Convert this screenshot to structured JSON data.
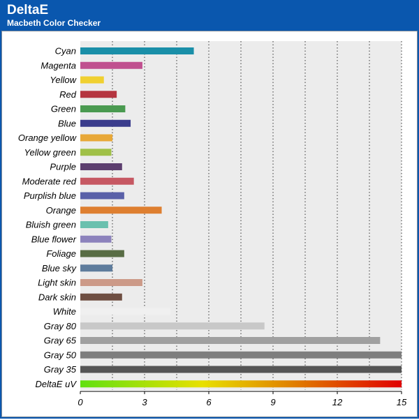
{
  "header": {
    "title": "DeltaE",
    "subtitle": "Macbeth Color Checker"
  },
  "chart_data": {
    "type": "bar",
    "orientation": "horizontal",
    "title": "DeltaE",
    "subtitle": "Macbeth Color Checker",
    "xlabel": "",
    "ylabel": "",
    "xlim": [
      0,
      15
    ],
    "xticks": [
      0,
      3,
      6,
      9,
      12,
      15
    ],
    "grid": "vertical dotted",
    "legend": "none",
    "categories": [
      "Cyan",
      "Magenta",
      "Yellow",
      "Red",
      "Green",
      "Blue",
      "Orange yellow",
      "Yellow green",
      "Purple",
      "Moderate red",
      "Purplish blue",
      "Orange",
      "Bluish green",
      "Blue flower",
      "Foliage",
      "Blue sky",
      "Light skin",
      "Dark skin",
      "White",
      "Gray 80",
      "Gray 65",
      "Gray 50",
      "Gray 35",
      "DeltaE uV"
    ],
    "values": [
      5.3,
      2.9,
      1.1,
      1.7,
      2.1,
      2.35,
      1.5,
      1.45,
      1.95,
      2.5,
      2.05,
      3.8,
      1.3,
      1.45,
      2.05,
      1.5,
      2.9,
      1.95,
      4.2,
      8.6,
      14.0,
      15.0,
      15.0,
      15.0
    ],
    "colors": [
      "#1a8fa8",
      "#c0508f",
      "#f0d030",
      "#b53540",
      "#4a9a50",
      "#3a3c8c",
      "#e8a838",
      "#a0c048",
      "#5c3e6e",
      "#c65862",
      "#5a60a8",
      "#de7f30",
      "#6ac0ae",
      "#8c82bc",
      "#586c44",
      "#5e7c9c",
      "#cc9a88",
      "#6e4e42",
      "#f0f0f0",
      "#c8c8c8",
      "#a0a0a0",
      "#7e7e7e",
      "#555555",
      "gradient"
    ],
    "gradient_colors": [
      "#60e010",
      "#e8e000",
      "#e08000",
      "#e00000"
    ]
  }
}
